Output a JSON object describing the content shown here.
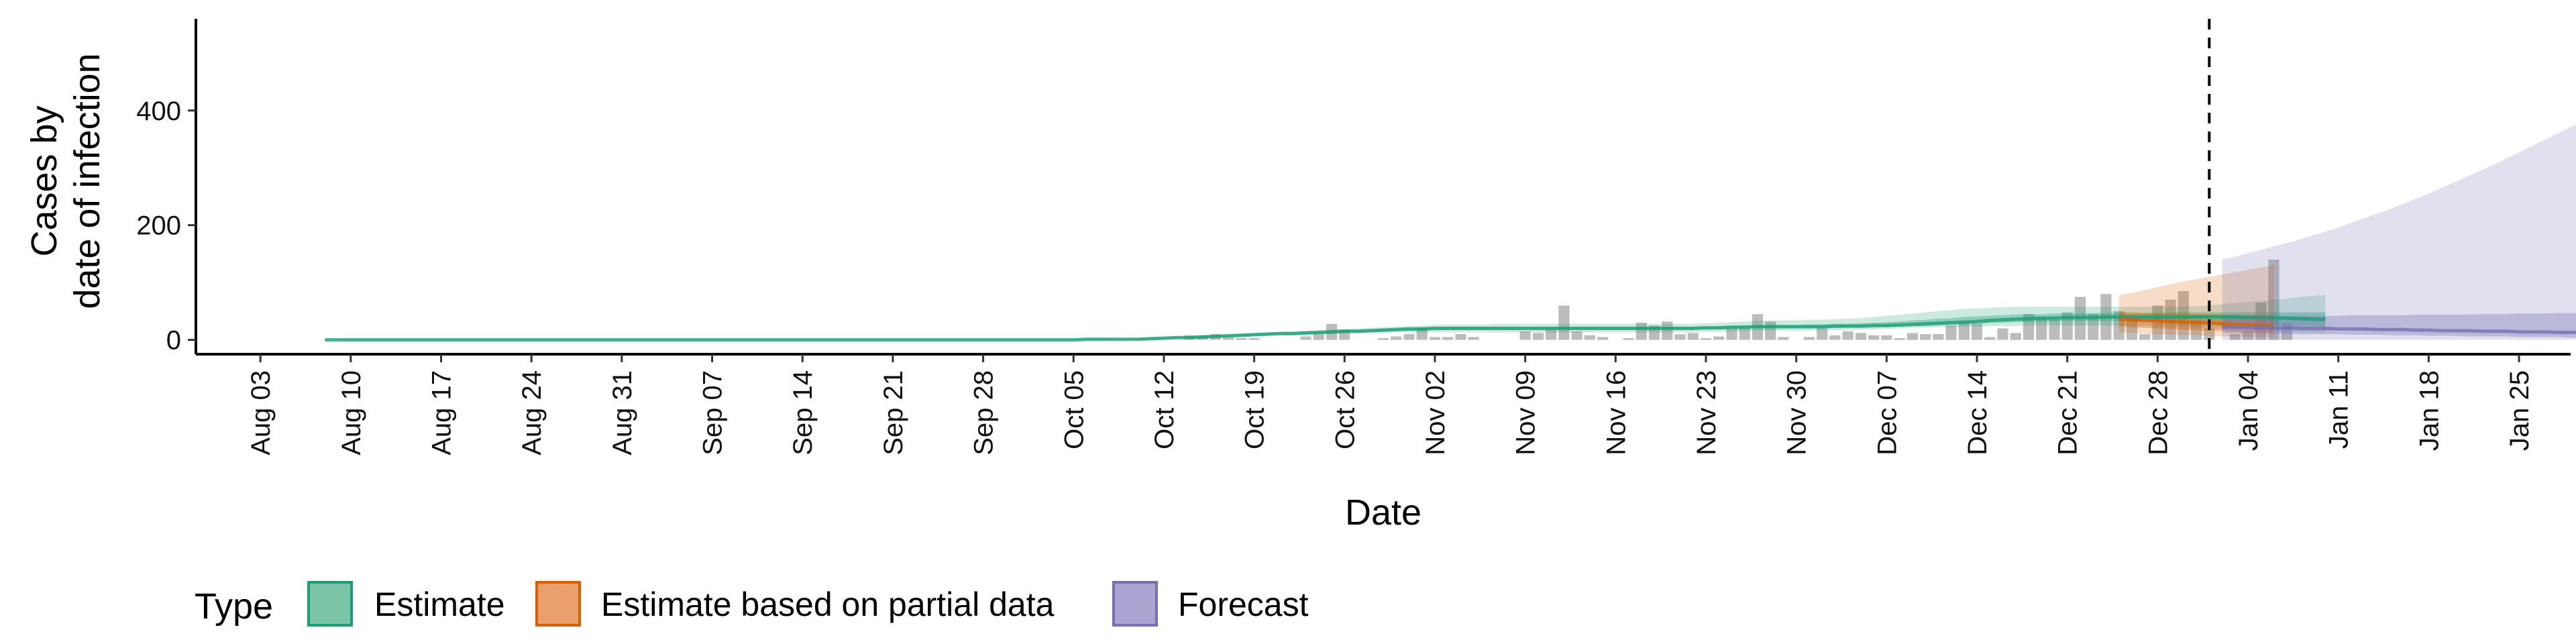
{
  "chart_data": {
    "type": "area",
    "xlabel": "Date",
    "ylabel_lines": [
      "Cases by",
      "date of infection"
    ],
    "ylim": [
      -25,
      560
    ],
    "y_ticks": [
      0,
      200,
      400
    ],
    "x_range": [
      "2020-07-29",
      "2021-01-29"
    ],
    "x_ticks": [
      "2020-08-03",
      "2020-08-10",
      "2020-08-17",
      "2020-08-24",
      "2020-08-31",
      "2020-09-07",
      "2020-09-14",
      "2020-09-21",
      "2020-09-28",
      "2020-10-05",
      "2020-10-12",
      "2020-10-19",
      "2020-10-26",
      "2020-11-02",
      "2020-11-09",
      "2020-11-16",
      "2020-11-23",
      "2020-11-30",
      "2020-12-07",
      "2020-12-14",
      "2020-12-21",
      "2020-12-28",
      "2021-01-04",
      "2021-01-11",
      "2021-01-18",
      "2021-01-25"
    ],
    "x_tick_labels": [
      "Aug 03",
      "Aug 10",
      "Aug 17",
      "Aug 24",
      "Aug 31",
      "Sep 07",
      "Sep 14",
      "Sep 21",
      "Sep 28",
      "Oct 05",
      "Oct 12",
      "Oct 19",
      "Oct 26",
      "Nov 02",
      "Nov 09",
      "Nov 16",
      "Nov 23",
      "Nov 30",
      "Dec 07",
      "Dec 14",
      "Dec 21",
      "Dec 28",
      "Jan 04",
      "Jan 11",
      "Jan 18",
      "Jan 25"
    ],
    "vline_date": "2021-01-01",
    "legend": {
      "title": "Type",
      "position": "bottom",
      "items": [
        {
          "label": "Estimate",
          "fill": "#7cc4a6",
          "stroke": "#1b9e77"
        },
        {
          "label": "Estimate based on partial data",
          "fill": "#e9a06a",
          "stroke": "#d95f02"
        },
        {
          "label": "Forecast",
          "fill": "#a9a4d1",
          "stroke": "#7570b3"
        }
      ]
    },
    "colors": {
      "estimate": "#1b9e77",
      "partial": "#d95f02",
      "forecast": "#7570b3",
      "bars": "#a6a6a6"
    },
    "bars": {
      "start_date": "2020-10-10",
      "values": [
        0,
        0,
        0,
        0,
        8,
        8,
        10,
        4,
        3,
        3,
        0,
        0,
        0,
        6,
        12,
        28,
        18,
        0,
        0,
        3,
        6,
        10,
        20,
        5,
        5,
        10,
        5,
        0,
        0,
        0,
        15,
        12,
        18,
        60,
        15,
        8,
        5,
        0,
        3,
        30,
        25,
        32,
        10,
        12,
        3,
        6,
        20,
        20,
        45,
        32,
        5,
        0,
        5,
        20,
        8,
        15,
        12,
        8,
        8,
        3,
        12,
        10,
        10,
        25,
        32,
        28,
        5,
        20,
        12,
        45,
        38,
        35,
        48,
        75,
        45,
        80,
        50,
        40,
        10,
        60,
        70,
        85,
        35,
        20,
        0,
        10,
        15,
        65,
        140,
        28,
        0
      ]
    },
    "series": [
      {
        "type": "estimate",
        "start_date": "2020-08-08",
        "center": [
          0,
          0,
          0,
          0,
          0,
          0,
          0,
          0,
          0,
          0,
          0,
          0,
          0,
          0,
          0,
          0,
          0,
          0,
          0,
          0,
          0,
          0,
          0,
          0,
          0,
          0,
          0,
          0,
          0,
          0,
          0,
          0,
          0,
          0,
          0,
          0,
          0,
          0,
          0,
          0,
          0,
          0,
          0,
          0,
          0,
          0,
          0,
          0,
          0,
          0,
          0,
          0,
          0,
          0,
          0,
          0,
          0,
          0,
          0,
          1,
          1,
          1,
          1,
          1,
          2,
          3,
          4,
          4,
          5,
          6,
          7,
          8,
          9,
          10,
          11,
          11,
          12,
          13,
          14,
          15,
          15,
          16,
          17,
          18,
          19,
          19,
          20,
          20,
          20,
          20,
          20,
          20,
          20,
          20,
          20,
          20,
          20,
          20,
          20,
          20,
          20,
          20,
          20,
          20,
          20,
          20,
          20,
          21,
          21,
          22,
          22,
          23,
          23,
          23,
          23,
          23,
          23,
          24,
          24,
          24,
          25,
          25,
          26,
          27,
          28,
          29,
          30,
          31,
          32,
          34,
          35,
          36,
          37,
          38,
          38,
          39,
          39,
          39,
          40,
          40,
          40,
          40,
          40,
          40,
          40,
          40,
          40,
          40,
          40,
          39,
          39,
          38,
          38,
          37,
          36,
          36
        ],
        "outer_upper": [
          0,
          1,
          1,
          1,
          1,
          1,
          1,
          1,
          1,
          1,
          1,
          1,
          1,
          1,
          1,
          1,
          1,
          1,
          1,
          1,
          1,
          1,
          1,
          1,
          1,
          1,
          1,
          1,
          1,
          1,
          1,
          1,
          1,
          1,
          1,
          1,
          1,
          1,
          1,
          1,
          1,
          1,
          1,
          1,
          1,
          1,
          1,
          1,
          1,
          1,
          1,
          1,
          1,
          1,
          1,
          1,
          1,
          1,
          1,
          2,
          2,
          2,
          2,
          3,
          4,
          5,
          6,
          7,
          8,
          9,
          10,
          11,
          12,
          13,
          14,
          15,
          16,
          17,
          18,
          19,
          20,
          21,
          22,
          23,
          24,
          25,
          26,
          27,
          27,
          27,
          27,
          28,
          28,
          28,
          28,
          28,
          28,
          28,
          28,
          28,
          28,
          28,
          28,
          28,
          28,
          28,
          28,
          29,
          30,
          31,
          32,
          33,
          34,
          34,
          34,
          35,
          35,
          36,
          37,
          38,
          40,
          42,
          44,
          46,
          48,
          50,
          52,
          54,
          55,
          56,
          57,
          58,
          58,
          58,
          58,
          58,
          58,
          58,
          58,
          58,
          58,
          58,
          58,
          58,
          58,
          59,
          60,
          62,
          64,
          66,
          68,
          70,
          72,
          75,
          77,
          78
        ],
        "outer_lower": [
          0,
          0,
          0,
          0,
          0,
          0,
          0,
          0,
          0,
          0,
          0,
          0,
          0,
          0,
          0,
          0,
          0,
          0,
          0,
          0,
          0,
          0,
          0,
          0,
          0,
          0,
          0,
          0,
          0,
          0,
          0,
          0,
          0,
          0,
          0,
          0,
          0,
          0,
          0,
          0,
          0,
          0,
          0,
          0,
          0,
          0,
          0,
          0,
          0,
          0,
          0,
          0,
          0,
          0,
          0,
          0,
          0,
          0,
          0,
          0,
          0,
          0,
          0,
          0,
          0,
          1,
          2,
          2,
          3,
          3,
          4,
          5,
          6,
          7,
          8,
          8,
          9,
          10,
          10,
          11,
          11,
          12,
          12,
          13,
          13,
          13,
          13,
          13,
          13,
          13,
          13,
          13,
          13,
          13,
          13,
          13,
          13,
          13,
          13,
          13,
          13,
          13,
          13,
          13,
          13,
          13,
          13,
          14,
          14,
          15,
          15,
          16,
          16,
          16,
          16,
          16,
          17,
          17,
          17,
          18,
          18,
          19,
          20,
          21,
          21,
          22,
          22,
          23,
          23,
          24,
          24,
          24,
          25,
          25,
          25,
          25,
          25,
          25,
          25,
          25,
          25,
          25,
          24,
          24,
          23,
          22,
          21,
          20,
          19,
          18,
          17,
          16,
          15,
          14,
          14,
          13
        ],
        "inner_upper": [
          0,
          0,
          0,
          0,
          0,
          0,
          0,
          0,
          0,
          0,
          0,
          0,
          0,
          0,
          0,
          0,
          0,
          0,
          0,
          0,
          0,
          0,
          0,
          0,
          0,
          0,
          0,
          0,
          0,
          0,
          0,
          0,
          0,
          0,
          0,
          0,
          0,
          0,
          0,
          0,
          0,
          0,
          0,
          0,
          0,
          0,
          0,
          0,
          0,
          0,
          0,
          0,
          0,
          0,
          0,
          0,
          0,
          0,
          0,
          1,
          1,
          1,
          1,
          2,
          3,
          3,
          4,
          5,
          6,
          7,
          8,
          9,
          10,
          11,
          12,
          12,
          13,
          14,
          15,
          16,
          17,
          18,
          19,
          19,
          20,
          21,
          22,
          22,
          22,
          22,
          22,
          22,
          22,
          22,
          22,
          22,
          22,
          22,
          22,
          22,
          22,
          22,
          22,
          22,
          22,
          22,
          22,
          23,
          24,
          24,
          25,
          26,
          26,
          26,
          26,
          27,
          27,
          28,
          28,
          29,
          30,
          31,
          32,
          34,
          35,
          37,
          38,
          40,
          41,
          42,
          43,
          44,
          45,
          45,
          46,
          46,
          46,
          47,
          47,
          47,
          47,
          47,
          47,
          48,
          48,
          48,
          48,
          48,
          48,
          48,
          48,
          48,
          48,
          48,
          48,
          48
        ],
        "inner_lower": [
          0,
          0,
          0,
          0,
          0,
          0,
          0,
          0,
          0,
          0,
          0,
          0,
          0,
          0,
          0,
          0,
          0,
          0,
          0,
          0,
          0,
          0,
          0,
          0,
          0,
          0,
          0,
          0,
          0,
          0,
          0,
          0,
          0,
          0,
          0,
          0,
          0,
          0,
          0,
          0,
          0,
          0,
          0,
          0,
          0,
          0,
          0,
          0,
          0,
          0,
          0,
          0,
          0,
          0,
          0,
          0,
          0,
          0,
          0,
          0,
          0,
          0,
          1,
          1,
          1,
          2,
          3,
          3,
          4,
          5,
          6,
          7,
          8,
          9,
          10,
          10,
          11,
          12,
          13,
          13,
          14,
          15,
          15,
          16,
          16,
          17,
          18,
          18,
          18,
          18,
          18,
          18,
          18,
          18,
          18,
          18,
          18,
          18,
          18,
          18,
          18,
          18,
          18,
          18,
          18,
          18,
          18,
          19,
          19,
          20,
          20,
          21,
          21,
          21,
          21,
          21,
          21,
          21,
          22,
          22,
          22,
          23,
          23,
          24,
          24,
          25,
          26,
          27,
          28,
          29,
          30,
          31,
          31,
          32,
          32,
          33,
          33,
          33,
          33,
          33,
          33,
          33,
          33,
          33,
          32,
          32,
          31,
          30,
          29,
          28,
          27,
          26,
          25,
          24,
          24,
          23
        ]
      },
      {
        "type": "partial",
        "start_date": "2020-12-25",
        "center": [
          36,
          35,
          34,
          33,
          32,
          31,
          30,
          29,
          28,
          27,
          26,
          25,
          24
        ],
        "outer_upper": [
          78,
          82,
          87,
          92,
          97,
          102,
          106,
          110,
          114,
          118,
          122,
          126,
          130
        ],
        "outer_lower": [
          13,
          12,
          11,
          10,
          9,
          8,
          8,
          7,
          6,
          6,
          5,
          5,
          4
        ],
        "inner_upper": [
          48,
          48,
          47,
          47,
          46,
          46,
          45,
          45,
          44,
          44,
          43,
          43,
          42
        ],
        "inner_lower": [
          23,
          22,
          21,
          20,
          19,
          18,
          17,
          16,
          16,
          15,
          15,
          14,
          14
        ]
      },
      {
        "type": "forecast",
        "start_date": "2021-01-02",
        "center": [
          22,
          22,
          22,
          21,
          21,
          21,
          20,
          20,
          20,
          19,
          19,
          19,
          18,
          18,
          18,
          17,
          17,
          16,
          16,
          16,
          15,
          15,
          15,
          14,
          14,
          14,
          13,
          13,
          13,
          12,
          12,
          12,
          11,
          11,
          11,
          10,
          10,
          10,
          10,
          9
        ],
        "outer_upper": [
          140,
          145,
          151,
          157,
          163,
          169,
          175,
          182,
          189,
          196,
          204,
          212,
          220,
          228,
          237,
          246,
          255,
          265,
          275,
          285,
          295,
          305,
          316,
          327,
          338,
          349,
          360,
          371,
          382,
          392,
          404,
          420,
          436,
          452,
          468,
          484,
          500,
          516,
          532,
          540
        ],
        "outer_lower": [
          0,
          0,
          0,
          0,
          0,
          0,
          0,
          0,
          0,
          0,
          0,
          0,
          0,
          0,
          0,
          0,
          0,
          0,
          0,
          0,
          0,
          0,
          0,
          0,
          0,
          0,
          0,
          0,
          0,
          0,
          0,
          0,
          0,
          0,
          0,
          0,
          0,
          0,
          0,
          0
        ],
        "inner_upper": [
          42,
          42,
          42,
          42,
          42,
          42,
          42,
          42,
          42,
          42,
          43,
          43,
          43,
          43,
          43,
          44,
          44,
          44,
          44,
          44,
          45,
          45,
          45,
          46,
          46,
          46,
          47,
          47,
          47,
          48,
          48,
          49,
          49,
          50,
          50,
          51,
          51,
          52,
          52,
          52
        ],
        "inner_lower": [
          12,
          12,
          12,
          11,
          11,
          11,
          10,
          10,
          10,
          10,
          9,
          9,
          9,
          8,
          8,
          8,
          7,
          7,
          7,
          6,
          6,
          6,
          6,
          5,
          5,
          5,
          5,
          4,
          4,
          4,
          4,
          3,
          3,
          3,
          3,
          3,
          2,
          2,
          2,
          2
        ]
      }
    ]
  }
}
